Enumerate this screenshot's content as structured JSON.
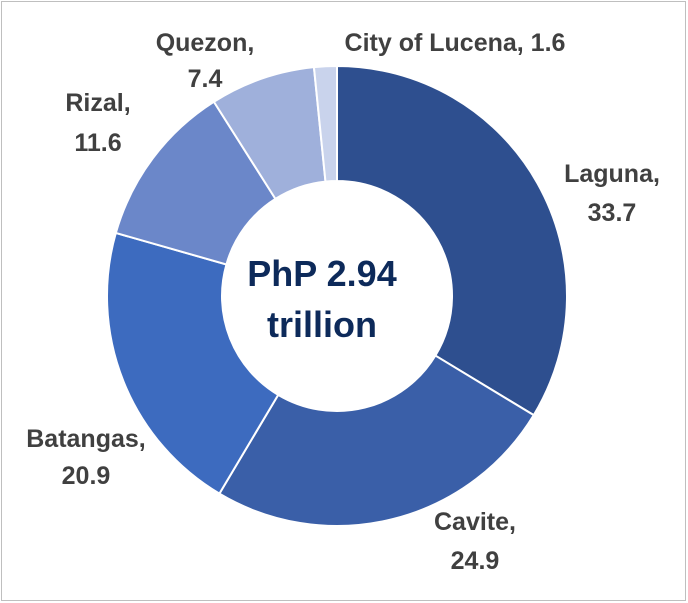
{
  "chart_data": {
    "type": "pie",
    "style": "donut",
    "center_text": [
      "PhP 2.94",
      "trillion"
    ],
    "slices": [
      {
        "name": "Laguna",
        "value": 33.7,
        "color": "#2e4f8f"
      },
      {
        "name": "Cavite",
        "value": 24.9,
        "color": "#3a5fa8"
      },
      {
        "name": "Batangas",
        "value": 20.9,
        "color": "#3d6bbf"
      },
      {
        "name": "Rizal",
        "value": 11.6,
        "color": "#6b87c9"
      },
      {
        "name": "Quezon",
        "value": 7.4,
        "color": "#9fb0db"
      },
      {
        "name": "City of Lucena",
        "value": 1.6,
        "color": "#c9d3ec"
      }
    ],
    "labels": [
      {
        "line1": "Laguna,",
        "line2": "33.7"
      },
      {
        "line1": "Cavite,",
        "line2": "24.9"
      },
      {
        "line1": "Batangas,",
        "line2": "20.9"
      },
      {
        "line1": "Rizal,",
        "line2": "11.6"
      },
      {
        "line1": "Quezon,",
        "line2": "7.4"
      },
      {
        "line1": "City of Lucena, 1.6",
        "line2": ""
      }
    ]
  }
}
